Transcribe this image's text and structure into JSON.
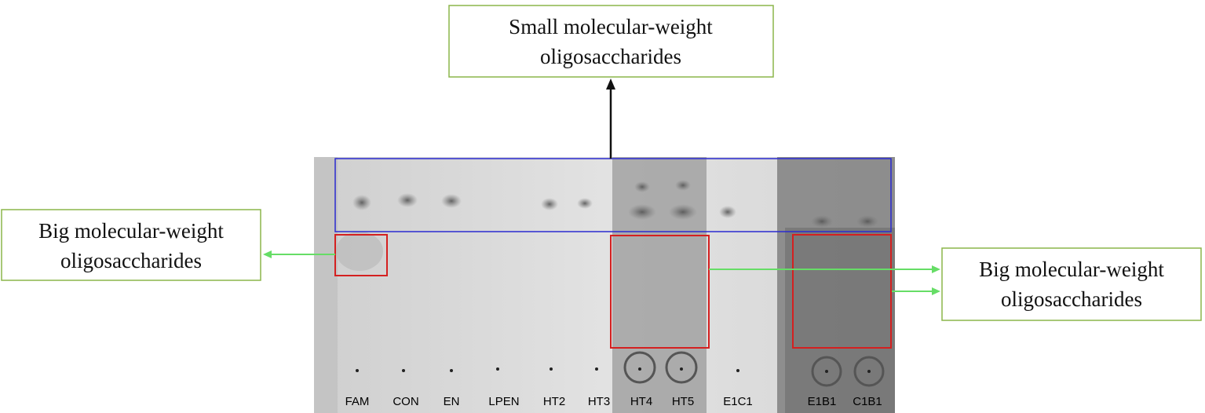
{
  "annotations": {
    "top": {
      "lines": [
        "Small molecular-weight",
        "oligosaccharides"
      ]
    },
    "left": {
      "lines": [
        "Big molecular-weight",
        "oligosaccharides"
      ]
    },
    "right": {
      "lines": [
        "Big molecular-weight",
        "oligosaccharides"
      ]
    }
  },
  "lanes": [
    "FAM",
    "CON",
    "EN",
    "LPEN",
    "HT2",
    "HT3",
    "HT4",
    "HT5",
    "E1C1",
    "E1B1",
    "C1B1"
  ]
}
